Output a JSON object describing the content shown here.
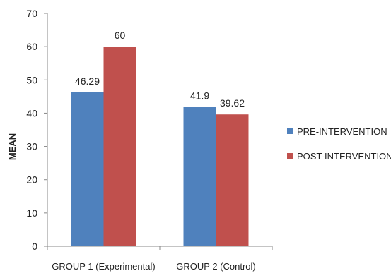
{
  "chart_data": {
    "type": "bar",
    "ylabel": "MEAN",
    "xlabel": "",
    "ylim": [
      0,
      70
    ],
    "yticks": [
      "0",
      "10",
      "20",
      "30",
      "40",
      "50",
      "60",
      "70"
    ],
    "categories": [
      "GROUP 1 (Experimental)",
      "GROUP 2 (Control)"
    ],
    "series": [
      {
        "name": "PRE-INTERVENTION",
        "values": [
          46.29,
          41.9
        ],
        "labels": [
          "46.29",
          "41.9"
        ],
        "color": "#4F81BD"
      },
      {
        "name": "POST-INTERVENTION",
        "values": [
          60,
          39.62
        ],
        "labels": [
          "60",
          "39.62"
        ],
        "color": "#C0504D"
      }
    ],
    "legend_position": "right",
    "grid": false
  }
}
